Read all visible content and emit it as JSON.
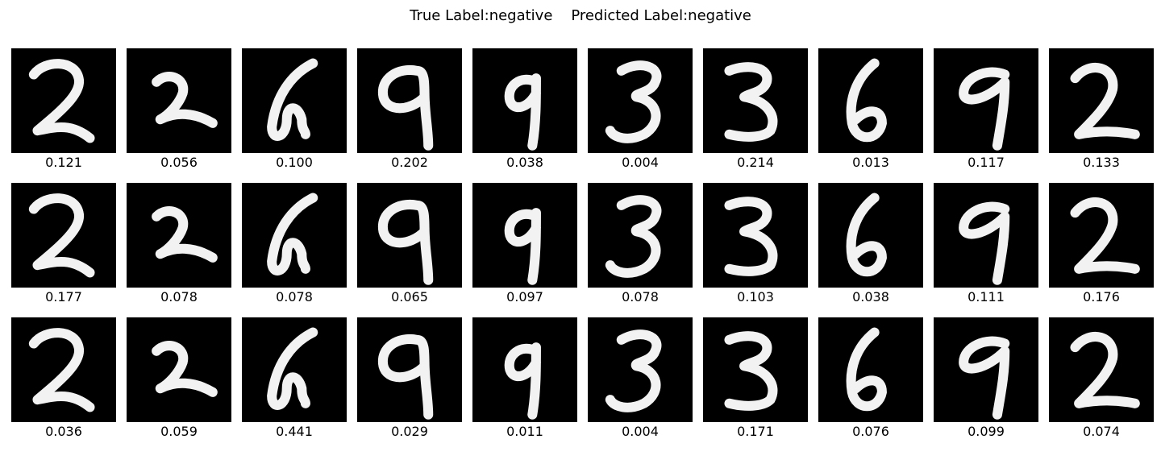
{
  "figure": {
    "title_true_label": "True Label:negative",
    "title_predicted_label": "Predicted Label:negative"
  },
  "digits": [
    "2",
    "2",
    "6",
    "9",
    "9",
    "3",
    "3",
    "6",
    "9",
    "2"
  ],
  "rows": [
    {
      "scores": [
        "0.121",
        "0.056",
        "0.100",
        "0.202",
        "0.038",
        "0.004",
        "0.214",
        "0.013",
        "0.117",
        "0.133"
      ]
    },
    {
      "scores": [
        "0.177",
        "0.078",
        "0.078",
        "0.065",
        "0.097",
        "0.078",
        "0.103",
        "0.038",
        "0.111",
        "0.176"
      ]
    },
    {
      "scores": [
        "0.036",
        "0.059",
        "0.441",
        "0.029",
        "0.011",
        "0.004",
        "0.171",
        "0.076",
        "0.099",
        "0.074"
      ]
    }
  ],
  "colors": {
    "tile_background": "#000000",
    "stroke": "#f2f2f2"
  }
}
